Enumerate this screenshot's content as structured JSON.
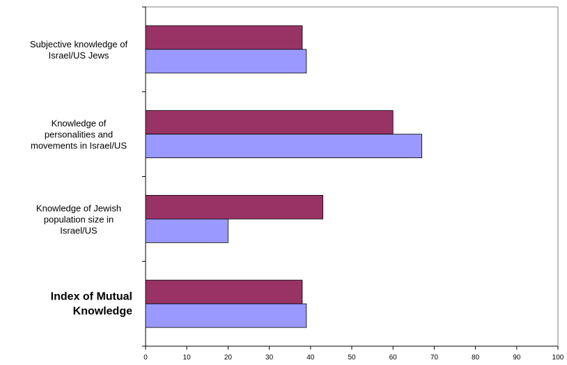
{
  "chart_data": {
    "type": "bar",
    "orientation": "horizontal",
    "categories": [
      {
        "lines": [
          "Subjective knowledge of",
          "Israel/US Jews"
        ],
        "highlight": false
      },
      {
        "lines": [
          "Knowledge of",
          "personalities and",
          "movements in Israel/US"
        ],
        "highlight": false
      },
      {
        "lines": [
          "Knowledge of Jewish",
          "population size in",
          "Israel/US"
        ],
        "highlight": false
      },
      {
        "lines": [
          "Index of Mutual",
          "Knowledge"
        ],
        "highlight": true
      }
    ],
    "series": [
      {
        "color": "#993366",
        "values": [
          38,
          60,
          43,
          38
        ]
      },
      {
        "color": "#9999ff",
        "values": [
          39,
          67,
          20,
          39
        ]
      }
    ],
    "xlim": [
      0,
      100
    ],
    "xticks": [
      "0",
      "10",
      "20",
      "30",
      "40",
      "50",
      "60",
      "70",
      "80",
      "90",
      "100"
    ],
    "highlight_color": "#0000ff",
    "grid": false,
    "legend": "none"
  }
}
